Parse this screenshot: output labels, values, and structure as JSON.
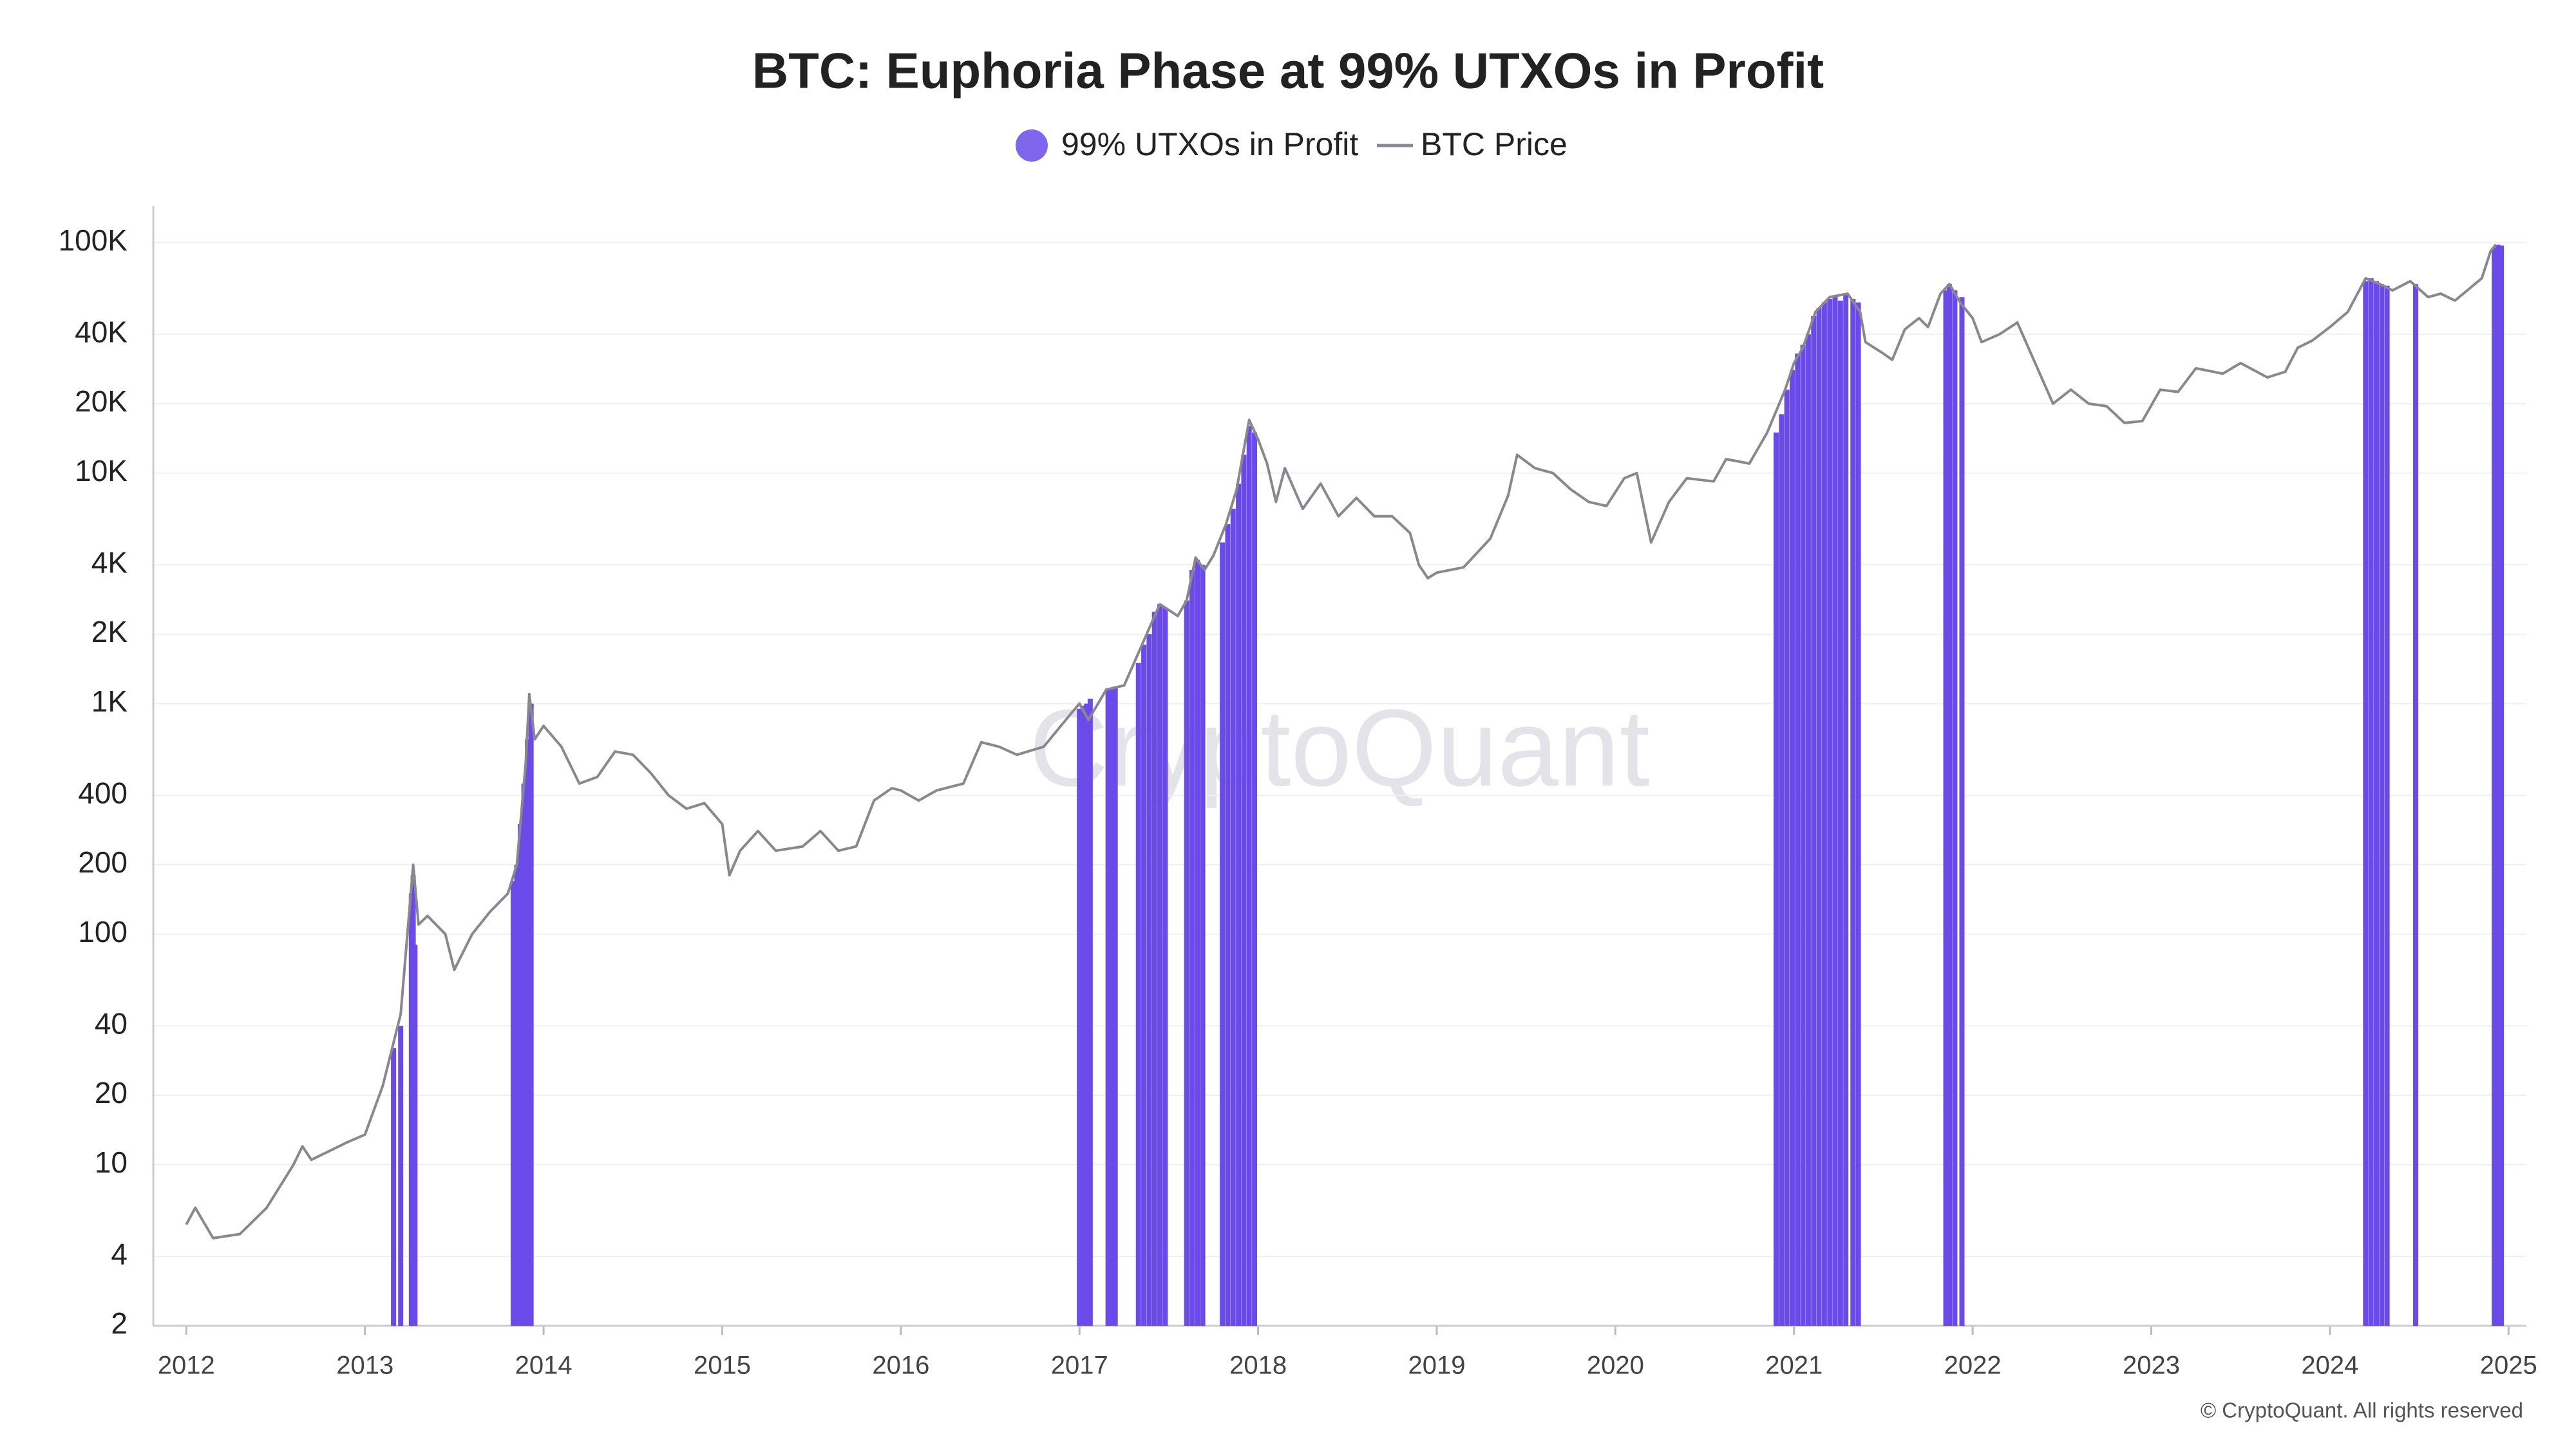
{
  "chart_data": {
    "type": "line",
    "title": "BTC: Euphoria Phase at 99% UTXOs in Profit",
    "watermark": "CryptoQuant",
    "credit": "© CryptoQuant. All rights reserved",
    "log_scale": "y",
    "grid": true,
    "xlim": [
      2011.815,
      2025.1
    ],
    "xticks": [
      2012,
      2013,
      2014,
      2015,
      2016,
      2017,
      2018,
      2019,
      2020,
      2021,
      2022,
      2023,
      2024,
      2025
    ],
    "ylim": [
      2,
      144000
    ],
    "yticks": [
      2,
      4,
      10,
      20,
      40,
      100,
      200,
      400,
      {
        "value": 1000,
        "label": "1K"
      },
      {
        "value": 2000,
        "label": "2K"
      },
      {
        "value": 4000,
        "label": "4K"
      },
      {
        "value": 10000,
        "label": "10K"
      },
      {
        "value": 20000,
        "label": "20K"
      },
      {
        "value": 40000,
        "label": "40K"
      },
      {
        "value": 100000,
        "label": "100K"
      }
    ],
    "series": [
      {
        "name": "99% UTXOs in Profit",
        "type": "bar",
        "color": "#6a4bea",
        "x": [
          2013.16,
          2013.2,
          2013.26,
          2013.27,
          2013.28,
          2013.83,
          2013.85,
          2013.87,
          2013.89,
          2013.91,
          2013.93,
          2017.0,
          2017.02,
          2017.04,
          2017.06,
          2017.16,
          2017.18,
          2017.2,
          2017.33,
          2017.36,
          2017.39,
          2017.42,
          2017.45,
          2017.48,
          2017.6,
          2017.63,
          2017.66,
          2017.69,
          2017.8,
          2017.83,
          2017.86,
          2017.89,
          2017.92,
          2017.95,
          2017.98,
          2020.9,
          2020.93,
          2020.96,
          2020.99,
          2021.02,
          2021.05,
          2021.08,
          2021.11,
          2021.14,
          2021.17,
          2021.2,
          2021.23,
          2021.26,
          2021.29,
          2021.33,
          2021.36,
          2021.85,
          2021.87,
          2021.9,
          2021.94,
          2024.2,
          2024.23,
          2024.26,
          2024.29,
          2024.32,
          2024.48,
          2024.92,
          2024.94,
          2024.96
        ],
        "values": [
          32,
          40,
          150,
          180,
          90,
          170,
          200,
          300,
          450,
          700,
          1000,
          950,
          980,
          1000,
          1050,
          1150,
          1150,
          1180,
          1500,
          1800,
          2000,
          2500,
          2700,
          2600,
          2800,
          3800,
          4200,
          4000,
          5000,
          6000,
          7000,
          9000,
          12000,
          16000,
          15000,
          15000,
          18000,
          23000,
          28000,
          33000,
          36000,
          40000,
          48000,
          52000,
          55000,
          57000,
          58000,
          56000,
          60000,
          57000,
          55000,
          62000,
          66000,
          62000,
          58000,
          68000,
          70000,
          68000,
          66000,
          65000,
          66000,
          95000,
          98000,
          97000
        ]
      },
      {
        "name": "BTC Price",
        "type": "line",
        "color": "#8a8791",
        "x": [
          2012.0,
          2012.05,
          2012.15,
          2012.3,
          2012.45,
          2012.6,
          2012.65,
          2012.7,
          2012.9,
          2013.0,
          2013.1,
          2013.2,
          2013.27,
          2013.3,
          2013.35,
          2013.45,
          2013.5,
          2013.6,
          2013.7,
          2013.8,
          2013.85,
          2013.9,
          2013.92,
          2013.95,
          2014.0,
          2014.1,
          2014.2,
          2014.3,
          2014.4,
          2014.5,
          2014.6,
          2014.7,
          2014.8,
          2014.9,
          2015.0,
          2015.04,
          2015.1,
          2015.2,
          2015.3,
          2015.45,
          2015.55,
          2015.65,
          2015.75,
          2015.85,
          2015.95,
          2016.0,
          2016.1,
          2016.2,
          2016.35,
          2016.45,
          2016.55,
          2016.65,
          2016.8,
          2016.95,
          2017.0,
          2017.05,
          2017.15,
          2017.25,
          2017.35,
          2017.45,
          2017.55,
          2017.6,
          2017.65,
          2017.7,
          2017.75,
          2017.82,
          2017.88,
          2017.95,
          2018.0,
          2018.05,
          2018.1,
          2018.15,
          2018.25,
          2018.35,
          2018.45,
          2018.55,
          2018.65,
          2018.75,
          2018.85,
          2018.9,
          2018.95,
          2019.0,
          2019.15,
          2019.3,
          2019.4,
          2019.45,
          2019.55,
          2019.65,
          2019.75,
          2019.85,
          2019.95,
          2020.05,
          2020.12,
          2020.2,
          2020.3,
          2020.4,
          2020.55,
          2020.62,
          2020.75,
          2020.85,
          2020.95,
          2021.0,
          2021.05,
          2021.12,
          2021.2,
          2021.3,
          2021.37,
          2021.4,
          2021.5,
          2021.55,
          2021.62,
          2021.7,
          2021.75,
          2021.82,
          2021.87,
          2021.93,
          2022.0,
          2022.05,
          2022.15,
          2022.25,
          2022.35,
          2022.45,
          2022.55,
          2022.65,
          2022.75,
          2022.85,
          2022.95,
          2023.05,
          2023.15,
          2023.25,
          2023.4,
          2023.5,
          2023.65,
          2023.75,
          2023.82,
          2023.9,
          2024.0,
          2024.1,
          2024.2,
          2024.28,
          2024.35,
          2024.45,
          2024.55,
          2024.62,
          2024.7,
          2024.78,
          2024.85,
          2024.9,
          2024.93
        ],
        "values": [
          5.5,
          6.5,
          4.8,
          5.0,
          6.5,
          10,
          12,
          10.5,
          12.5,
          13.5,
          22,
          45,
          200,
          110,
          120,
          100,
          70,
          100,
          125,
          150,
          200,
          550,
          1100,
          700,
          800,
          650,
          450,
          480,
          620,
          600,
          500,
          400,
          350,
          370,
          300,
          180,
          230,
          280,
          230,
          240,
          280,
          230,
          240,
          380,
          430,
          420,
          380,
          420,
          450,
          680,
          650,
          600,
          650,
          900,
          1000,
          850,
          1150,
          1200,
          1800,
          2700,
          2400,
          2800,
          4300,
          3800,
          4400,
          6000,
          8500,
          17000,
          14000,
          11000,
          7500,
          10500,
          7000,
          9000,
          6500,
          7800,
          6500,
          6500,
          5500,
          4000,
          3500,
          3700,
          3900,
          5200,
          8000,
          12000,
          10500,
          10000,
          8500,
          7500,
          7200,
          9500,
          10000,
          5000,
          7500,
          9500,
          9200,
          11500,
          11000,
          15000,
          23000,
          30000,
          35000,
          50000,
          58000,
          60000,
          50000,
          37000,
          33000,
          31000,
          42000,
          47000,
          43000,
          60000,
          66000,
          55000,
          47000,
          37000,
          40000,
          45000,
          30000,
          20000,
          23000,
          20000,
          19500,
          16500,
          16800,
          23000,
          22500,
          28500,
          27000,
          30000,
          26000,
          27500,
          35000,
          37500,
          43000,
          50000,
          70000,
          66000,
          62000,
          68000,
          58000,
          60000,
          56000,
          63000,
          70000,
          92000,
          98000
        ]
      }
    ]
  }
}
